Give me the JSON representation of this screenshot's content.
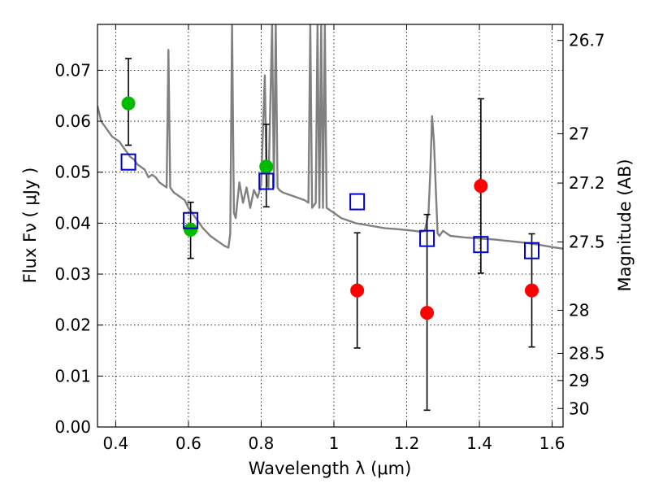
{
  "chart_data": {
    "type": "scatter",
    "xlabel": "Wavelength  λ (μm)",
    "ylabel": "Flux  Fν  ( μJy )",
    "y2label": "Magnitude (AB)",
    "xlim": [
      0.35,
      1.63
    ],
    "ylim": [
      0.0,
      0.079
    ],
    "x_ticks": [
      0.4,
      0.6,
      0.8,
      1.0,
      1.2,
      1.4,
      1.6
    ],
    "x_tick_labels": [
      "0.4",
      "0.6",
      "0.8",
      "1",
      "1.2",
      "1.4",
      "1.6"
    ],
    "y_ticks": [
      0.0,
      0.01,
      0.02,
      0.03,
      0.04,
      0.05,
      0.06,
      0.07
    ],
    "y_tick_labels": [
      "0.00",
      "0.01",
      "0.02",
      "0.03",
      "0.04",
      "0.05",
      "0.06",
      "0.07"
    ],
    "y2_ticks": [
      26.7,
      27,
      27.2,
      27.5,
      28,
      28.5,
      29,
      30
    ],
    "y2_tick_labels": [
      "26.7",
      "27",
      "27.2",
      "27.5",
      "28",
      "28.5",
      "29",
      "30"
    ],
    "grid": true,
    "colors": {
      "spectrum": "#808080",
      "green_points": "#00bb00",
      "red_points": "#ff0000",
      "model_squares": "#0000cc",
      "errorbars": "#000000"
    },
    "series": [
      {
        "kind": "line",
        "points": [
          [
            0.35,
            0.063
          ],
          [
            0.36,
            0.06
          ],
          [
            0.37,
            0.059
          ],
          [
            0.38,
            0.058
          ],
          [
            0.39,
            0.057
          ],
          [
            0.4,
            0.0565
          ],
          [
            0.41,
            0.056
          ],
          [
            0.42,
            0.055
          ],
          [
            0.43,
            0.054
          ],
          [
            0.44,
            0.053
          ],
          [
            0.45,
            0.0525
          ],
          [
            0.46,
            0.0515
          ],
          [
            0.47,
            0.051
          ],
          [
            0.48,
            0.0505
          ],
          [
            0.49,
            0.049
          ],
          [
            0.5,
            0.0495
          ],
          [
            0.51,
            0.049
          ],
          [
            0.52,
            0.048
          ],
          [
            0.53,
            0.0475
          ],
          [
            0.54,
            0.047
          ],
          [
            0.545,
            0.074
          ],
          [
            0.55,
            0.047
          ],
          [
            0.56,
            0.046
          ],
          [
            0.57,
            0.0455
          ],
          [
            0.58,
            0.045
          ],
          [
            0.59,
            0.0445
          ],
          [
            0.6,
            0.043
          ],
          [
            0.62,
            0.041
          ],
          [
            0.64,
            0.039
          ],
          [
            0.66,
            0.0375
          ],
          [
            0.68,
            0.0365
          ],
          [
            0.7,
            0.0355
          ],
          [
            0.71,
            0.0352
          ],
          [
            0.715,
            0.038
          ],
          [
            0.72,
            0.079
          ],
          [
            0.725,
            0.042
          ],
          [
            0.73,
            0.041
          ],
          [
            0.74,
            0.048
          ],
          [
            0.75,
            0.044
          ],
          [
            0.76,
            0.047
          ],
          [
            0.77,
            0.043
          ],
          [
            0.78,
            0.0465
          ],
          [
            0.79,
            0.045
          ],
          [
            0.8,
            0.0475
          ],
          [
            0.81,
            0.069
          ],
          [
            0.815,
            0.048
          ],
          [
            0.82,
            0.047
          ],
          [
            0.83,
            0.079
          ],
          [
            0.835,
            0.047
          ],
          [
            0.84,
            0.079
          ],
          [
            0.845,
            0.047
          ],
          [
            0.85,
            0.0465
          ],
          [
            0.86,
            0.046
          ],
          [
            0.88,
            0.0455
          ],
          [
            0.9,
            0.045
          ],
          [
            0.92,
            0.0445
          ],
          [
            0.93,
            0.044
          ],
          [
            0.935,
            0.079
          ],
          [
            0.94,
            0.043
          ],
          [
            0.95,
            0.044
          ],
          [
            0.955,
            0.079
          ],
          [
            0.96,
            0.043
          ],
          [
            0.965,
            0.079
          ],
          [
            0.97,
            0.043
          ],
          [
            0.975,
            0.079
          ],
          [
            0.98,
            0.043
          ],
          [
            1.0,
            0.042
          ],
          [
            1.02,
            0.041
          ],
          [
            1.04,
            0.0405
          ],
          [
            1.06,
            0.04
          ],
          [
            1.1,
            0.0395
          ],
          [
            1.14,
            0.039
          ],
          [
            1.18,
            0.0388
          ],
          [
            1.22,
            0.0385
          ],
          [
            1.24,
            0.0383
          ],
          [
            1.25,
            0.0385
          ],
          [
            1.26,
            0.042
          ],
          [
            1.265,
            0.05
          ],
          [
            1.27,
            0.061
          ],
          [
            1.275,
            0.056
          ],
          [
            1.28,
            0.047
          ],
          [
            1.285,
            0.038
          ],
          [
            1.29,
            0.0375
          ],
          [
            1.3,
            0.0385
          ],
          [
            1.32,
            0.0375
          ],
          [
            1.36,
            0.0372
          ],
          [
            1.4,
            0.037
          ],
          [
            1.44,
            0.0368
          ],
          [
            1.48,
            0.0365
          ],
          [
            1.52,
            0.0362
          ],
          [
            1.56,
            0.0358
          ],
          [
            1.6,
            0.0353
          ],
          [
            1.63,
            0.035
          ]
        ]
      },
      {
        "kind": "points",
        "marker": "circle",
        "color": "#00bb00",
        "points": [
          {
            "x": 0.435,
            "y": 0.0635,
            "yerr_low": 0.0553,
            "yerr_high": 0.0723
          },
          {
            "x": 0.606,
            "y": 0.0387,
            "yerr_low": 0.0331,
            "yerr_high": 0.0441
          },
          {
            "x": 0.814,
            "y": 0.0511,
            "yerr_low": 0.0432,
            "yerr_high": 0.0594
          }
        ]
      },
      {
        "kind": "points",
        "marker": "circle",
        "color": "#ff0000",
        "points": [
          {
            "x": 1.064,
            "y": 0.0268,
            "yerr_low": 0.0155,
            "yerr_high": 0.0381
          },
          {
            "x": 1.256,
            "y": 0.0224,
            "yerr_low": 0.0033,
            "yerr_high": 0.0417
          },
          {
            "x": 1.404,
            "y": 0.0473,
            "yerr_low": 0.0302,
            "yerr_high": 0.0644
          },
          {
            "x": 1.544,
            "y": 0.0268,
            "yerr_low": 0.0157,
            "yerr_high": 0.0379
          }
        ]
      },
      {
        "kind": "points",
        "marker": "square-open",
        "color": "#0000cc",
        "points": [
          {
            "x": 0.435,
            "y": 0.052
          },
          {
            "x": 0.606,
            "y": 0.0405
          },
          {
            "x": 0.814,
            "y": 0.0482
          },
          {
            "x": 1.064,
            "y": 0.0442
          },
          {
            "x": 1.256,
            "y": 0.037
          },
          {
            "x": 1.404,
            "y": 0.0358
          },
          {
            "x": 1.544,
            "y": 0.0346
          }
        ]
      }
    ]
  }
}
